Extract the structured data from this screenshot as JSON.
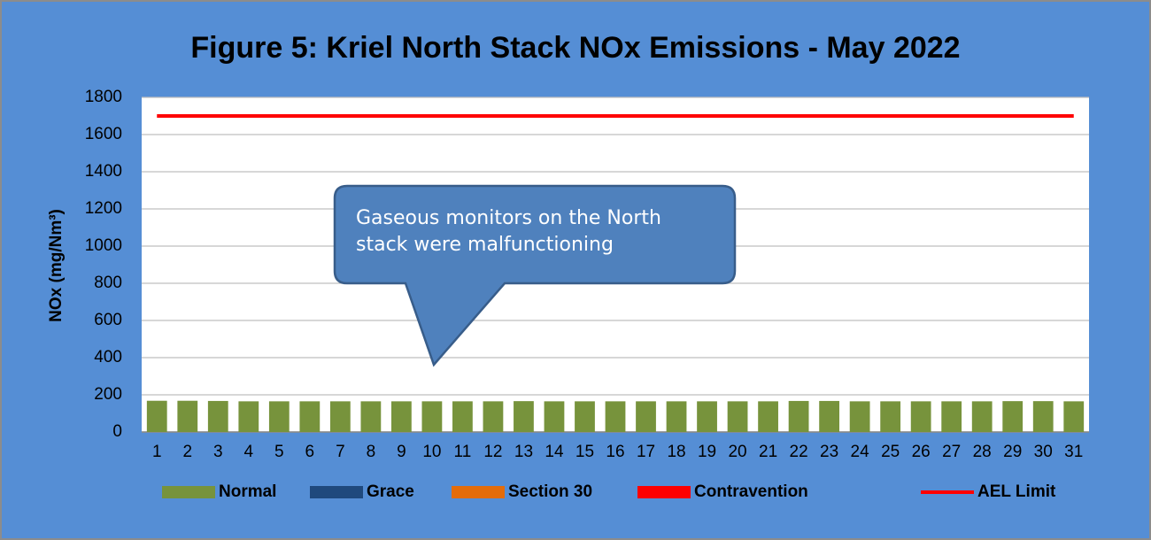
{
  "chart_data": {
    "type": "bar",
    "title": "Figure 5: Kriel North Stack NOx Emissions -  May 2022",
    "y_label": "NOx (mg/Nm³)",
    "annotation": "Gaseous monitors on the North stack were malfunctioning",
    "categories": [
      "1",
      "2",
      "3",
      "4",
      "5",
      "6",
      "7",
      "8",
      "9",
      "10",
      "11",
      "12",
      "13",
      "14",
      "15",
      "16",
      "17",
      "18",
      "19",
      "20",
      "21",
      "22",
      "23",
      "24",
      "25",
      "26",
      "27",
      "28",
      "29",
      "30",
      "31"
    ],
    "series": [
      {
        "name": "Normal",
        "type": "bar",
        "color": "#77933c",
        "values": [
          168,
          168,
          167,
          165,
          165,
          165,
          165,
          165,
          165,
          165,
          165,
          165,
          166,
          165,
          165,
          165,
          165,
          165,
          165,
          165,
          165,
          167,
          167,
          165,
          165,
          165,
          165,
          165,
          166,
          166,
          165
        ]
      },
      {
        "name": "Grace",
        "type": "bar",
        "color": "#1f497d",
        "values": [
          null,
          null,
          null,
          null,
          null,
          null,
          null,
          null,
          null,
          null,
          null,
          null,
          null,
          null,
          null,
          null,
          null,
          null,
          null,
          null,
          null,
          null,
          null,
          null,
          null,
          null,
          null,
          null,
          null,
          null,
          null
        ]
      },
      {
        "name": "Section 30",
        "type": "bar",
        "color": "#e46c0a",
        "values": [
          null,
          null,
          null,
          null,
          null,
          null,
          null,
          null,
          null,
          null,
          null,
          null,
          null,
          null,
          null,
          null,
          null,
          null,
          null,
          null,
          null,
          null,
          null,
          null,
          null,
          null,
          null,
          null,
          null,
          null,
          null
        ]
      },
      {
        "name": "Contravention",
        "type": "bar",
        "color": "#ff0000",
        "values": [
          null,
          null,
          null,
          null,
          null,
          null,
          null,
          null,
          null,
          null,
          null,
          null,
          null,
          null,
          null,
          null,
          null,
          null,
          null,
          null,
          null,
          null,
          null,
          null,
          null,
          null,
          null,
          null,
          null,
          null,
          null
        ]
      },
      {
        "name": "AEL Limit",
        "type": "line",
        "color": "#ff0000",
        "values": [
          1700,
          1700,
          1700,
          1700,
          1700,
          1700,
          1700,
          1700,
          1700,
          1700,
          1700,
          1700,
          1700,
          1700,
          1700,
          1700,
          1700,
          1700,
          1700,
          1700,
          1700,
          1700,
          1700,
          1700,
          1700,
          1700,
          1700,
          1700,
          1700,
          1700,
          1700
        ]
      }
    ],
    "ylim": [
      0,
      1800
    ],
    "yticks": [
      0,
      200,
      400,
      600,
      800,
      1000,
      1200,
      1400,
      1600,
      1800
    ],
    "grid": true,
    "legend": "bottom"
  }
}
